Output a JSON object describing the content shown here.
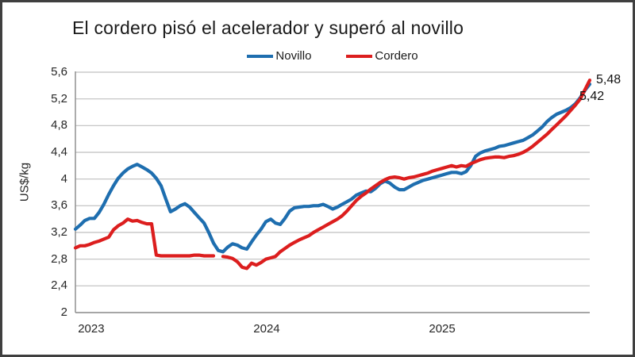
{
  "chart_data": {
    "type": "line",
    "title": "El cordero pisó el acelerador y superó al novillo",
    "ylabel": "US$/kg",
    "x_unit": "decimal_year",
    "xlim": [
      2022.91,
      2025.841
    ],
    "ylim": [
      2,
      5.6
    ],
    "grid": "horizontal",
    "legend_position": "top-center",
    "y_ticks": [
      {
        "v": 5.6,
        "label": "5,6"
      },
      {
        "v": 5.2,
        "label": "5,2"
      },
      {
        "v": 4.8,
        "label": "4,8"
      },
      {
        "v": 4.4,
        "label": "4,4"
      },
      {
        "v": 4.0,
        "label": "4"
      },
      {
        "v": 3.6,
        "label": "3,6"
      },
      {
        "v": 3.2,
        "label": "3,2"
      },
      {
        "v": 2.8,
        "label": "2,8"
      },
      {
        "v": 2.4,
        "label": "2,4"
      },
      {
        "v": 2.0,
        "label": "2"
      }
    ],
    "x_ticks": [
      {
        "v": 2023,
        "label": "2023"
      },
      {
        "v": 2024,
        "label": "2024"
      },
      {
        "v": 2025,
        "label": "2025"
      }
    ],
    "x": [
      2022.91,
      2022.937,
      2022.964,
      2022.991,
      2023.018,
      2023.045,
      2023.072,
      2023.1,
      2023.127,
      2023.154,
      2023.181,
      2023.208,
      2023.235,
      2023.262,
      2023.29,
      2023.317,
      2023.344,
      2023.371,
      2023.398,
      2023.425,
      2023.452,
      2023.48,
      2023.507,
      2023.534,
      2023.561,
      2023.588,
      2023.615,
      2023.643,
      2023.67,
      2023.697,
      2023.724,
      2023.751,
      2023.778,
      2023.805,
      2023.833,
      2023.86,
      2023.887,
      2023.914,
      2023.941,
      2023.968,
      2023.995,
      2024.023,
      2024.05,
      2024.077,
      2024.104,
      2024.131,
      2024.158,
      2024.186,
      2024.213,
      2024.24,
      2024.267,
      2024.294,
      2024.321,
      2024.348,
      2024.376,
      2024.403,
      2024.43,
      2024.457,
      2024.484,
      2024.511,
      2024.538,
      2024.566,
      2024.593,
      2024.62,
      2024.647,
      2024.674,
      2024.701,
      2024.729,
      2024.756,
      2024.783,
      2024.81,
      2024.837,
      2024.864,
      2024.891,
      2024.919,
      2024.946,
      2024.973,
      2025.0,
      2025.027,
      2025.054,
      2025.081,
      2025.109,
      2025.136,
      2025.163,
      2025.19,
      2025.217,
      2025.244,
      2025.271,
      2025.299,
      2025.326,
      2025.353,
      2025.38,
      2025.407,
      2025.434,
      2025.462,
      2025.489,
      2025.516,
      2025.543,
      2025.57,
      2025.597,
      2025.624,
      2025.652,
      2025.679,
      2025.706,
      2025.733,
      2025.76,
      2025.787,
      2025.814,
      2025.841
    ],
    "series": [
      {
        "name": "Novillo",
        "color": "#1e6eaf",
        "y": [
          3.25,
          3.31,
          3.38,
          3.41,
          3.41,
          3.5,
          3.62,
          3.77,
          3.9,
          4.01,
          4.09,
          4.15,
          4.19,
          4.22,
          4.18,
          4.14,
          4.09,
          4.01,
          3.9,
          3.7,
          3.51,
          3.55,
          3.6,
          3.63,
          3.58,
          3.5,
          3.42,
          3.34,
          3.2,
          3.04,
          2.93,
          2.91,
          2.98,
          3.03,
          3.01,
          2.97,
          2.95,
          3.06,
          3.16,
          3.25,
          3.36,
          3.4,
          3.34,
          3.32,
          3.41,
          3.52,
          3.57,
          3.58,
          3.59,
          3.59,
          3.6,
          3.6,
          3.62,
          3.59,
          3.55,
          3.58,
          3.62,
          3.66,
          3.7,
          3.76,
          3.79,
          3.82,
          3.81,
          3.86,
          3.93,
          3.97,
          3.94,
          3.88,
          3.84,
          3.84,
          3.88,
          3.92,
          3.95,
          3.98,
          4.0,
          4.02,
          4.04,
          4.06,
          4.08,
          4.1,
          4.1,
          4.08,
          4.11,
          4.2,
          4.34,
          4.39,
          4.42,
          4.44,
          4.46,
          4.49,
          4.5,
          4.52,
          4.54,
          4.56,
          4.58,
          4.62,
          4.66,
          4.72,
          4.78,
          4.86,
          4.92,
          4.97,
          5.0,
          5.03,
          5.07,
          5.13,
          5.22,
          5.33,
          5.42
        ]
      },
      {
        "name": "Cordero",
        "color": "#dc1e1e",
        "y": [
          2.97,
          3.0,
          3.0,
          3.02,
          3.05,
          3.07,
          3.1,
          3.13,
          3.24,
          3.3,
          3.34,
          3.4,
          3.37,
          3.38,
          3.35,
          3.33,
          3.33,
          2.86,
          2.85,
          2.85,
          2.85,
          2.85,
          2.85,
          2.85,
          2.85,
          2.86,
          2.86,
          2.85,
          2.85,
          2.85,
          null,
          2.84,
          2.83,
          2.81,
          2.76,
          2.68,
          2.66,
          2.74,
          2.71,
          2.75,
          2.8,
          2.82,
          2.84,
          2.91,
          2.96,
          3.01,
          3.05,
          3.09,
          3.12,
          3.15,
          3.2,
          3.24,
          3.28,
          3.32,
          3.36,
          3.4,
          3.45,
          3.52,
          3.6,
          3.68,
          3.74,
          3.79,
          3.85,
          3.9,
          3.95,
          3.99,
          4.02,
          4.03,
          4.02,
          4.0,
          4.02,
          4.03,
          4.05,
          4.07,
          4.09,
          4.12,
          4.14,
          4.16,
          4.18,
          4.2,
          4.18,
          4.2,
          4.19,
          4.23,
          4.26,
          4.29,
          4.31,
          4.32,
          4.33,
          4.33,
          4.32,
          4.34,
          4.35,
          4.37,
          4.4,
          4.44,
          4.49,
          4.55,
          4.61,
          4.67,
          4.74,
          4.81,
          4.88,
          4.95,
          5.03,
          5.11,
          5.2,
          5.34,
          5.48
        ]
      }
    ],
    "end_labels": [
      {
        "series": "Cordero",
        "text": "5,48"
      },
      {
        "series": "Novillo",
        "text": "5,42"
      }
    ]
  }
}
